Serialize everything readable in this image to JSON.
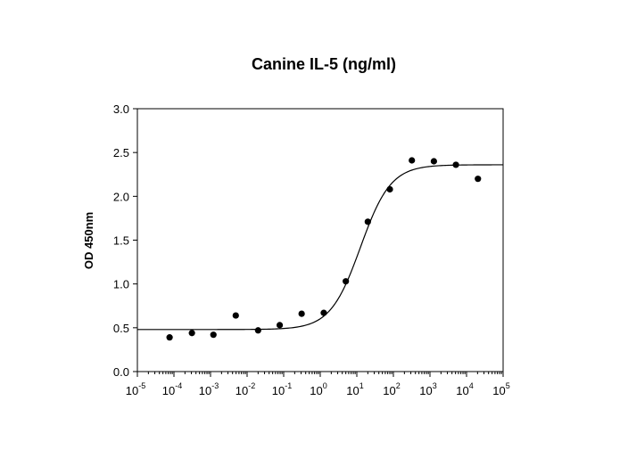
{
  "chart_data": {
    "type": "scatter",
    "title": "Canine IL-5 (ng/ml)",
    "xlabel": "",
    "ylabel": "OD 450nm",
    "x_scale": "log",
    "xlim": [
      1e-05,
      100000
    ],
    "ylim": [
      0.0,
      3.0
    ],
    "grid": false,
    "legend": "none",
    "x_ticks": [
      {
        "base": "10",
        "exp": "-5",
        "value": 1e-05
      },
      {
        "base": "10",
        "exp": "-4",
        "value": 0.0001
      },
      {
        "base": "10",
        "exp": "-3",
        "value": 0.001
      },
      {
        "base": "10",
        "exp": "-2",
        "value": 0.01
      },
      {
        "base": "10",
        "exp": "-1",
        "value": 0.1
      },
      {
        "base": "10",
        "exp": "0",
        "value": 1
      },
      {
        "base": "10",
        "exp": "1",
        "value": 10
      },
      {
        "base": "10",
        "exp": "2",
        "value": 100
      },
      {
        "base": "10",
        "exp": "3",
        "value": 1000
      },
      {
        "base": "10",
        "exp": "4",
        "value": 10000
      },
      {
        "base": "10",
        "exp": "5",
        "value": 100000
      }
    ],
    "y_ticks": [
      {
        "label": "0.0",
        "value": 0.0
      },
      {
        "label": "0.5",
        "value": 0.5
      },
      {
        "label": "1.0",
        "value": 1.0
      },
      {
        "label": "1.5",
        "value": 1.5
      },
      {
        "label": "2.0",
        "value": 2.0
      },
      {
        "label": "2.5",
        "value": 2.5
      },
      {
        "label": "3.0",
        "value": 3.0
      }
    ],
    "series": [
      {
        "points": [
          {
            "x": 7.6e-05,
            "y": 0.39
          },
          {
            "x": 0.00031,
            "y": 0.44
          },
          {
            "x": 0.0012,
            "y": 0.42
          },
          {
            "x": 0.0049,
            "y": 0.64
          },
          {
            "x": 0.02,
            "y": 0.47
          },
          {
            "x": 0.078,
            "y": 0.53
          },
          {
            "x": 0.31,
            "y": 0.66
          },
          {
            "x": 1.25,
            "y": 0.67
          },
          {
            "x": 5.0,
            "y": 1.03
          },
          {
            "x": 20,
            "y": 1.71
          },
          {
            "x": 80,
            "y": 2.08
          },
          {
            "x": 320,
            "y": 2.41
          },
          {
            "x": 1280,
            "y": 2.4
          },
          {
            "x": 5120,
            "y": 2.36
          },
          {
            "x": 20480,
            "y": 2.2
          }
        ],
        "fit": {
          "model": "4PL",
          "bottom": 0.48,
          "top": 2.36,
          "ec50": 12.6,
          "hill": 1.05
        }
      }
    ]
  }
}
